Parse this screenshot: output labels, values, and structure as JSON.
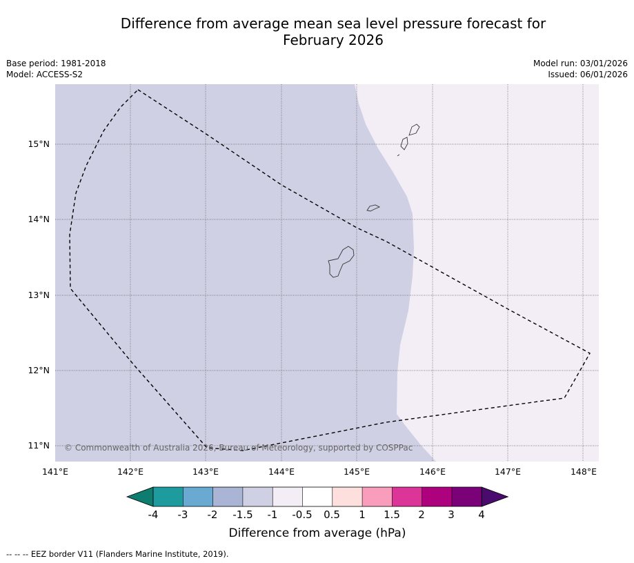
{
  "title": {
    "line1": "Difference from average mean sea level pressure forecast for",
    "line2": "February 2026"
  },
  "meta": {
    "base_period": "Base period: 1981-2018",
    "model": "Model: ACCESS-S2",
    "model_run": "Model run: 03/01/2026",
    "issued": "Issued: 06/01/2026"
  },
  "map": {
    "lon_labels": [
      "141°E",
      "142°E",
      "143°E",
      "144°E",
      "145°E",
      "146°E",
      "147°E",
      "148°E"
    ],
    "lat_labels": [
      "15°N",
      "14°N",
      "13°N",
      "12°N",
      "11°N"
    ],
    "copyright": "© Commonwealth of Australia 2026, Bureau of Meteorology, supported by COSPPac",
    "colors": {
      "band_minus_1_5_to_minus_1": "#d0d0e4",
      "band_minus_1_to_minus_0_5": "#f3eef6",
      "coastline": "#333333",
      "eez_border": "#000000"
    }
  },
  "colorbar": {
    "ticks": [
      "-4",
      "-3",
      "-2",
      "-1.5",
      "-1",
      "-0.5",
      "0.5",
      "1",
      "1.5",
      "2",
      "3",
      "4"
    ],
    "colors": [
      "#0e7c6e",
      "#1e9b9e",
      "#69a9d2",
      "#aab4d4",
      "#d0d0e4",
      "#f3eef6",
      "#ffffff",
      "#fde0dd",
      "#f89dbc",
      "#dd3497",
      "#ae017e",
      "#7a0177",
      "#4a0a6e"
    ],
    "label": "Difference from average (hPa)"
  },
  "footer": {
    "legend": "--  --  -- EEZ border V11 (Flanders Marine Institute, 2019)."
  }
}
